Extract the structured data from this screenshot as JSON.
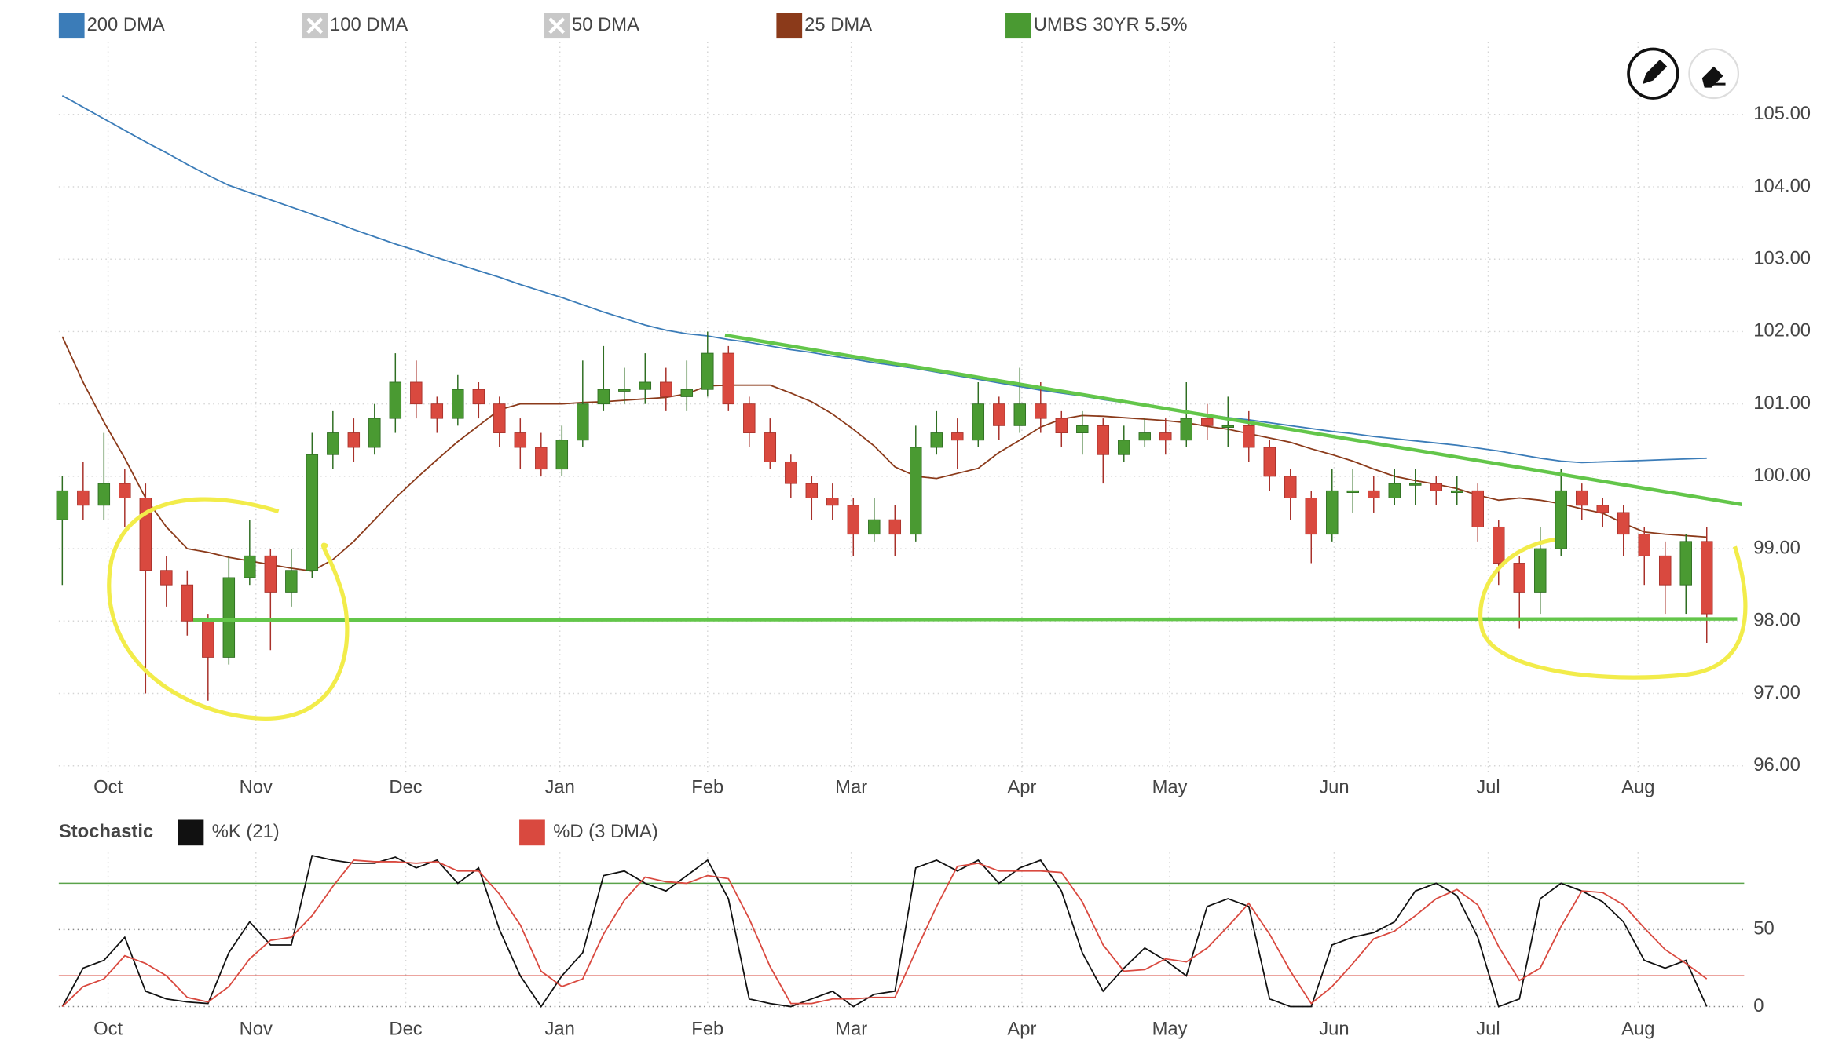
{
  "chart_data": [
    {
      "type": "candlestick",
      "xlim": [
        0,
        79
      ],
      "xticks": [
        {
          "value": 2.2,
          "label": "Oct"
        },
        {
          "value": 9.3,
          "label": "Nov"
        },
        {
          "value": 16.5,
          "label": "Dec"
        },
        {
          "value": 23.9,
          "label": "Jan"
        },
        {
          "value": 31.0,
          "label": "Feb"
        },
        {
          "value": 37.9,
          "label": "Mar"
        },
        {
          "value": 46.1,
          "label": "Apr"
        },
        {
          "value": 53.2,
          "label": "May"
        },
        {
          "value": 61.1,
          "label": "Jun"
        },
        {
          "value": 68.5,
          "label": "Jul"
        },
        {
          "value": 75.7,
          "label": "Aug"
        }
      ],
      "ylim": [
        95.9,
        106.0
      ],
      "yticks": [
        {
          "value": 96,
          "label": "96.00"
        },
        {
          "value": 97,
          "label": "97.00"
        },
        {
          "value": 98,
          "label": "98.00"
        },
        {
          "value": 99,
          "label": "99.00"
        },
        {
          "value": 100,
          "label": "100.00"
        },
        {
          "value": 101,
          "label": "101.00"
        },
        {
          "value": 102,
          "label": "102.00"
        },
        {
          "value": 103,
          "label": "103.00"
        },
        {
          "value": 104,
          "label": "104.00"
        },
        {
          "value": 105,
          "label": "105.00"
        }
      ],
      "grid": true,
      "series": [
        {
          "name": "200 DMA",
          "type": "line",
          "color": "#3b7cb8",
          "values": [
            105.26,
            105.1,
            104.94,
            104.78,
            104.62,
            104.47,
            104.31,
            104.16,
            104.02,
            103.92,
            103.82,
            103.72,
            103.62,
            103.52,
            103.41,
            103.31,
            103.21,
            103.12,
            103.02,
            102.93,
            102.84,
            102.75,
            102.65,
            102.56,
            102.47,
            102.37,
            102.27,
            102.18,
            102.09,
            102.02,
            101.97,
            101.94,
            101.89,
            101.85,
            101.8,
            101.75,
            101.71,
            101.66,
            101.62,
            101.57,
            101.53,
            101.49,
            101.44,
            101.39,
            101.34,
            101.29,
            101.24,
            101.19,
            101.15,
            101.11,
            101.06,
            101.02,
            100.98,
            100.93,
            100.89,
            100.85,
            100.81,
            100.78,
            100.74,
            100.7,
            100.66,
            100.62,
            100.59,
            100.55,
            100.52,
            100.49,
            100.46,
            100.43,
            100.39,
            100.35,
            100.3,
            100.25,
            100.21,
            100.19,
            100.2,
            100.21,
            100.22,
            100.23,
            100.24,
            100.25
          ]
        },
        {
          "name": "100 DMA",
          "visible": false,
          "color": "#c8c8c8"
        },
        {
          "name": "50 DMA",
          "visible": false,
          "color": "#c8c8c8"
        },
        {
          "name": "25 DMA",
          "type": "line",
          "color": "#8b3a1a",
          "values": [
            101.93,
            101.3,
            100.75,
            100.25,
            99.7,
            99.3,
            99.0,
            98.95,
            98.88,
            98.83,
            98.78,
            98.73,
            98.69,
            98.85,
            99.1,
            99.4,
            99.7,
            99.97,
            100.23,
            100.48,
            100.7,
            100.92,
            101.0,
            101.0,
            101.0,
            101.02,
            101.03,
            101.05,
            101.07,
            101.09,
            101.14,
            101.25,
            101.26,
            101.26,
            101.26,
            101.15,
            101.03,
            100.86,
            100.65,
            100.42,
            100.13,
            100.0,
            99.97,
            100.04,
            100.11,
            100.33,
            100.5,
            100.68,
            100.79,
            100.84,
            100.83,
            100.81,
            100.79,
            100.77,
            100.74,
            100.69,
            100.65,
            100.59,
            100.53,
            100.47,
            100.38,
            100.3,
            100.21,
            100.1,
            100.0,
            99.94,
            99.89,
            99.83,
            99.74,
            99.67,
            99.7,
            99.67,
            99.62,
            99.55,
            99.49,
            99.35,
            99.23,
            99.2,
            99.18,
            99.16
          ]
        },
        {
          "name": "UMBS 30YR 5.5%",
          "type": "candlestick",
          "color": "#4a9a32",
          "down_color": "#d9493f",
          "open": [
            99.4,
            99.8,
            99.6,
            99.9,
            99.7,
            98.7,
            98.5,
            98.0,
            97.5,
            98.6,
            98.9,
            98.4,
            98.7,
            100.3,
            100.6,
            100.4,
            100.8,
            101.3,
            101.0,
            100.8,
            101.2,
            101.0,
            100.6,
            100.4,
            100.1,
            100.5,
            101.0,
            101.2,
            101.2,
            101.3,
            101.1,
            101.2,
            101.7,
            101.0,
            100.6,
            100.2,
            99.9,
            99.7,
            99.6,
            99.2,
            99.4,
            99.2,
            100.4,
            100.6,
            100.5,
            101.0,
            100.7,
            101.0,
            100.8,
            100.6,
            100.7,
            100.3,
            100.5,
            100.6,
            100.5,
            100.8,
            100.7,
            100.7,
            100.4,
            100.0,
            99.7,
            99.2,
            99.8,
            99.8,
            99.7,
            99.9,
            99.9,
            99.8,
            99.8,
            99.3,
            98.8,
            98.4,
            99.0,
            99.8,
            99.6,
            99.5,
            99.2,
            98.9,
            98.5,
            99.1
          ],
          "high": [
            100.0,
            100.2,
            100.6,
            100.1,
            99.9,
            98.9,
            98.7,
            98.1,
            98.9,
            99.4,
            99.0,
            99.0,
            100.6,
            100.9,
            100.8,
            101.0,
            101.7,
            101.6,
            101.1,
            101.4,
            101.3,
            101.1,
            100.8,
            100.6,
            100.7,
            101.6,
            101.8,
            101.5,
            101.7,
            101.5,
            101.6,
            102.0,
            101.8,
            101.1,
            100.8,
            100.3,
            100.0,
            99.9,
            99.7,
            99.7,
            99.6,
            100.7,
            100.9,
            100.8,
            101.3,
            101.1,
            101.5,
            101.3,
            100.9,
            100.9,
            100.8,
            100.7,
            100.8,
            100.8,
            101.3,
            101.0,
            101.1,
            100.9,
            100.5,
            100.1,
            99.8,
            100.1,
            100.1,
            100.0,
            100.1,
            100.1,
            100.0,
            100.0,
            99.9,
            99.4,
            98.9,
            99.3,
            100.1,
            99.9,
            99.7,
            99.6,
            99.3,
            99.1,
            99.2,
            99.3
          ],
          "low": [
            98.5,
            99.4,
            99.4,
            99.3,
            97.0,
            98.2,
            97.8,
            96.9,
            97.4,
            98.5,
            97.6,
            98.2,
            98.6,
            100.1,
            100.2,
            100.3,
            100.6,
            100.8,
            100.6,
            100.7,
            100.8,
            100.4,
            100.1,
            100.0,
            100.0,
            100.4,
            100.9,
            101.0,
            101.0,
            100.9,
            100.9,
            101.1,
            100.9,
            100.4,
            100.1,
            99.7,
            99.4,
            99.4,
            98.9,
            99.1,
            98.9,
            99.1,
            100.3,
            100.1,
            100.4,
            100.5,
            100.6,
            100.6,
            100.4,
            100.3,
            99.9,
            100.2,
            100.4,
            100.3,
            100.4,
            100.5,
            100.4,
            100.2,
            99.8,
            99.4,
            98.8,
            99.1,
            99.5,
            99.5,
            99.6,
            99.6,
            99.6,
            99.6,
            99.1,
            98.5,
            97.9,
            98.1,
            98.9,
            99.4,
            99.3,
            98.9,
            98.5,
            98.1,
            98.1,
            97.7
          ],
          "close": [
            99.8,
            99.6,
            99.9,
            99.7,
            98.7,
            98.5,
            98.0,
            97.5,
            98.6,
            98.9,
            98.4,
            98.7,
            100.3,
            100.6,
            100.4,
            100.8,
            101.3,
            101.0,
            100.8,
            101.2,
            101.0,
            100.6,
            100.4,
            100.1,
            100.5,
            101.0,
            101.2,
            101.2,
            101.3,
            101.1,
            101.2,
            101.7,
            101.0,
            100.6,
            100.2,
            99.9,
            99.7,
            99.6,
            99.2,
            99.4,
            99.2,
            100.4,
            100.6,
            100.5,
            101.0,
            100.7,
            101.0,
            100.8,
            100.6,
            100.7,
            100.3,
            100.5,
            100.6,
            100.5,
            100.8,
            100.7,
            100.7,
            100.4,
            100.0,
            99.7,
            99.2,
            99.8,
            99.8,
            99.7,
            99.9,
            99.9,
            99.8,
            99.8,
            99.3,
            98.8,
            98.4,
            99.0,
            99.8,
            99.6,
            99.5,
            99.2,
            98.9,
            98.5,
            99.1,
            98.1
          ]
        }
      ]
    },
    {
      "type": "line",
      "title": "Stochastic",
      "xlim": [
        0,
        79
      ],
      "xticks": [
        {
          "value": 2.2,
          "label": "Oct"
        },
        {
          "value": 9.3,
          "label": "Nov"
        },
        {
          "value": 16.5,
          "label": "Dec"
        },
        {
          "value": 23.9,
          "label": "Jan"
        },
        {
          "value": 31.0,
          "label": "Feb"
        },
        {
          "value": 37.9,
          "label": "Mar"
        },
        {
          "value": 46.1,
          "label": "Apr"
        },
        {
          "value": 53.2,
          "label": "May"
        },
        {
          "value": 61.1,
          "label": "Jun"
        },
        {
          "value": 68.5,
          "label": "Jul"
        },
        {
          "value": 75.7,
          "label": "Aug"
        }
      ],
      "ylim": [
        0,
        100
      ],
      "yticks": [
        0,
        50
      ],
      "levels": [
        {
          "value": 80,
          "color": "#5aa34a"
        },
        {
          "value": 20,
          "color": "#d9493f"
        }
      ],
      "series": [
        {
          "name": "%K (21)",
          "color": "#111111",
          "values": [
            0,
            25,
            30,
            45,
            10,
            5,
            3,
            2,
            35,
            55,
            40,
            40,
            98,
            95,
            93,
            93,
            97,
            90,
            95,
            80,
            90,
            50,
            20,
            0,
            20,
            35,
            85,
            88,
            80,
            75,
            85,
            95,
            70,
            5,
            2,
            0,
            5,
            10,
            0,
            8,
            10,
            90,
            95,
            88,
            95,
            80,
            90,
            95,
            75,
            35,
            10,
            25,
            38,
            30,
            20,
            65,
            70,
            65,
            5,
            0,
            0,
            40,
            45,
            48,
            55,
            75,
            80,
            72,
            45,
            0,
            5,
            70,
            80,
            75,
            68,
            55,
            30,
            25,
            30,
            0
          ]
        },
        {
          "name": "%D (3 DMA)",
          "color": "#d9493f",
          "values": [
            0,
            13,
            18,
            33,
            28,
            20,
            6,
            3,
            13,
            31,
            43,
            45,
            59,
            78,
            95,
            94,
            94,
            93,
            94,
            88,
            88,
            73,
            53,
            23,
            13,
            18,
            47,
            69,
            84,
            81,
            80,
            85,
            83,
            57,
            26,
            2,
            2,
            5,
            5,
            6,
            6,
            36,
            65,
            91,
            93,
            88,
            88,
            88,
            87,
            68,
            40,
            23,
            24,
            31,
            29,
            38,
            52,
            67,
            47,
            23,
            2,
            13,
            28,
            44,
            49,
            59,
            70,
            76,
            66,
            39,
            17,
            25,
            52,
            75,
            74,
            66,
            51,
            37,
            28,
            18
          ]
        }
      ]
    }
  ]
}
